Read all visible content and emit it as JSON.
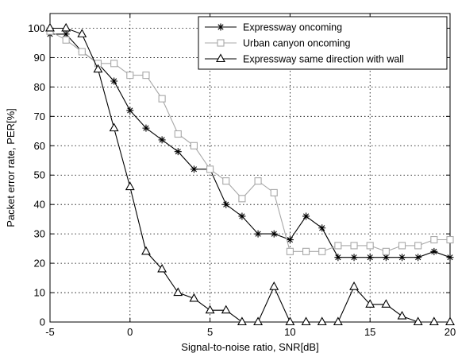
{
  "chart_data": {
    "type": "line",
    "xlabel": "Signal-to-noise ratio, SNR[dB]",
    "ylabel": "Packet error rate, PER[%]",
    "xlim": [
      -5,
      20
    ],
    "ylim": [
      0,
      105
    ],
    "xticks": [
      -5,
      0,
      5,
      10,
      15,
      20
    ],
    "yticks": [
      0,
      10,
      20,
      30,
      40,
      50,
      60,
      70,
      80,
      90,
      100
    ],
    "grid": true,
    "legend_position": "top-right",
    "series": [
      {
        "name": "Expressway oncoming",
        "marker": "star",
        "color": "#000000",
        "x": [
          -5,
          -4,
          -3,
          -2,
          -1,
          0,
          1,
          2,
          3,
          4,
          5,
          6,
          7,
          8,
          9,
          10,
          11,
          12,
          13,
          14,
          15,
          16,
          17,
          18,
          19,
          20
        ],
        "y": [
          98,
          98,
          92,
          88,
          82,
          72,
          66,
          62,
          58,
          52,
          52,
          40,
          36,
          30,
          30,
          28,
          36,
          32,
          22,
          22,
          22,
          22,
          22,
          22,
          24,
          22
        ]
      },
      {
        "name": "Urban canyon oncoming",
        "marker": "square",
        "color": "#a8a8a8",
        "x": [
          -5,
          -4,
          -3,
          -2,
          -1,
          0,
          1,
          2,
          3,
          4,
          5,
          6,
          7,
          8,
          9,
          10,
          11,
          12,
          13,
          14,
          15,
          16,
          17,
          18,
          19,
          20
        ],
        "y": [
          99,
          96,
          92,
          88,
          88,
          84,
          84,
          76,
          64,
          60,
          52,
          48,
          42,
          48,
          44,
          24,
          24,
          24,
          26,
          26,
          26,
          24,
          26,
          26,
          28,
          28
        ]
      },
      {
        "name": "Expressway same direction with wall",
        "marker": "triangle",
        "color": "#000000",
        "x": [
          -5,
          -4,
          -3,
          -2,
          -1,
          0,
          1,
          2,
          3,
          4,
          5,
          6,
          7,
          8,
          9,
          10,
          11,
          12,
          13,
          14,
          15,
          16,
          17,
          18,
          19,
          20
        ],
        "y": [
          100,
          100,
          98,
          86,
          66,
          46,
          24,
          18,
          10,
          8,
          4,
          4,
          0,
          0,
          12,
          0,
          0,
          0,
          0,
          12,
          6,
          6,
          2,
          0,
          0,
          0
        ]
      }
    ]
  }
}
